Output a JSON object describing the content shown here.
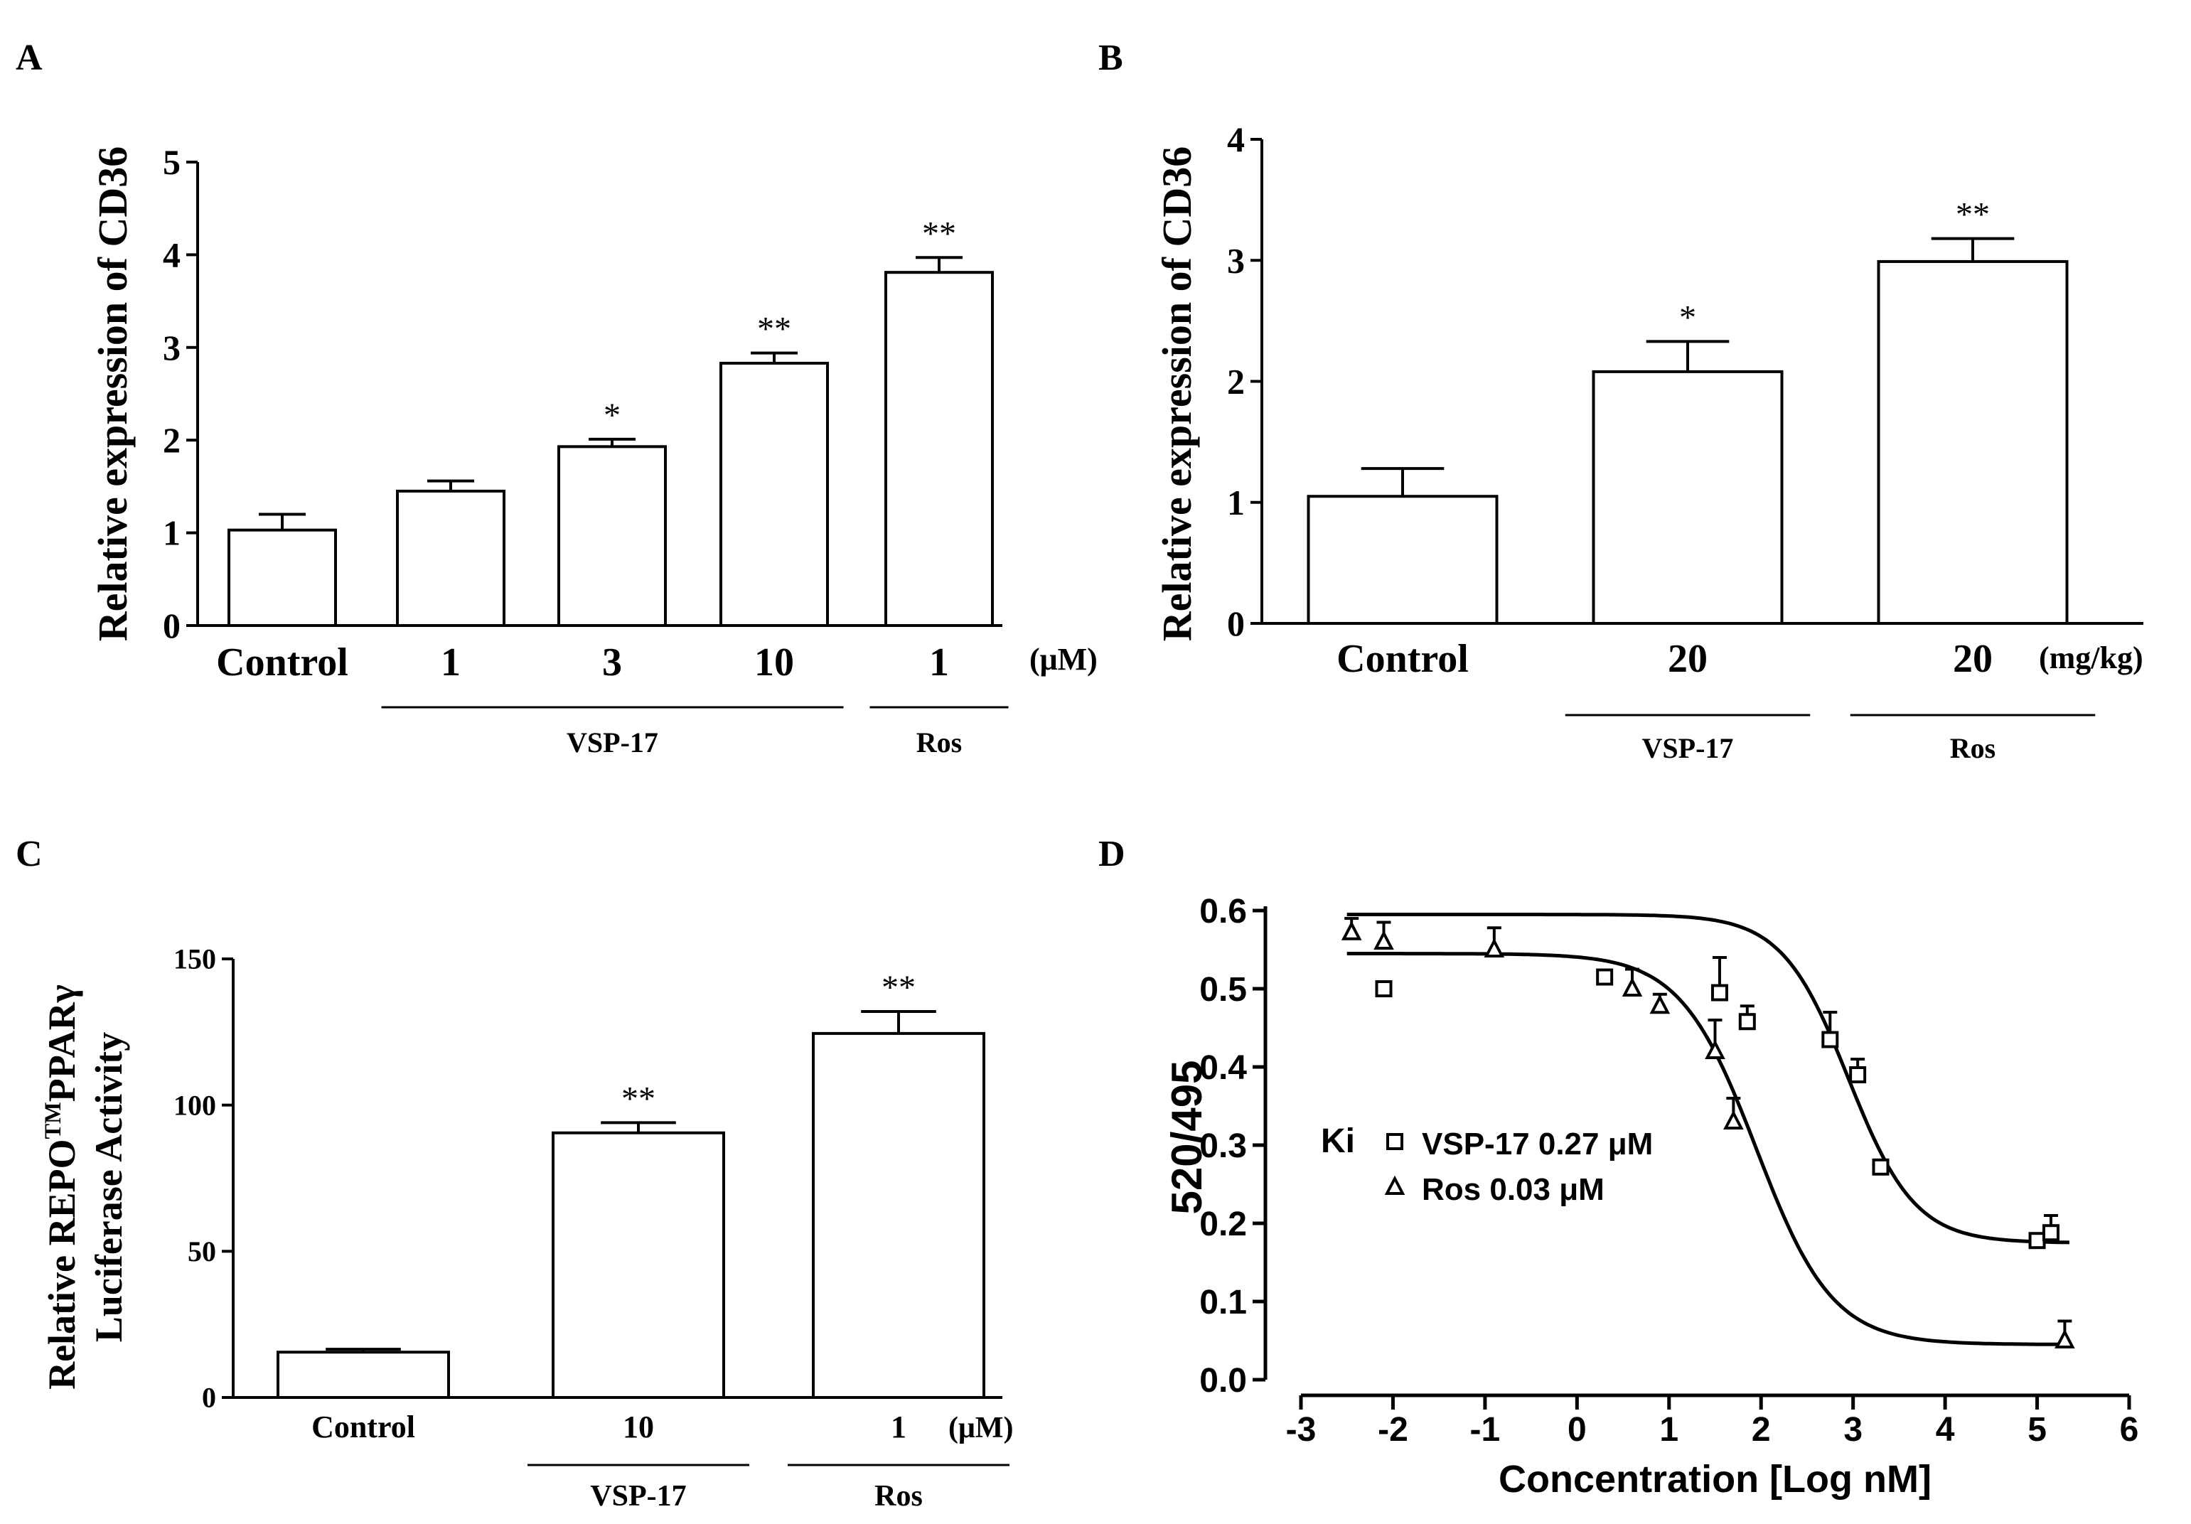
{
  "chart_data": [
    {
      "id": "A",
      "panel_label": "A",
      "type": "bar",
      "ylabel": "Relative expression of CD36",
      "ylim": [
        0,
        5
      ],
      "yticks": [
        "0",
        "1",
        "2",
        "3",
        "4",
        "5"
      ],
      "categories": [
        "Control",
        "1",
        "3",
        "10",
        "1"
      ],
      "values": [
        1.03,
        1.45,
        1.93,
        2.83,
        3.81
      ],
      "errors": [
        0.17,
        0.11,
        0.08,
        0.11,
        0.16
      ],
      "significance": [
        "",
        "",
        "*",
        "**",
        "**"
      ],
      "unit": "(μM)",
      "groups": [
        {
          "label": "VSP-17",
          "from": 1,
          "to": 3
        },
        {
          "label": "Ros",
          "from": 4,
          "to": 4
        }
      ]
    },
    {
      "id": "B",
      "panel_label": "B",
      "type": "bar",
      "ylabel": "Relative expression of CD36",
      "ylim": [
        0,
        4
      ],
      "yticks": [
        "0",
        "1",
        "2",
        "3",
        "4"
      ],
      "categories": [
        "Control",
        "20",
        "20"
      ],
      "values": [
        1.05,
        2.08,
        2.99
      ],
      "errors": [
        0.23,
        0.25,
        0.19
      ],
      "significance": [
        "",
        "*",
        "**"
      ],
      "unit": "(mg/kg)",
      "groups": [
        {
          "label": "VSP-17",
          "from": 1,
          "to": 1
        },
        {
          "label": "Ros",
          "from": 2,
          "to": 2
        }
      ]
    },
    {
      "id": "C",
      "panel_label": "C",
      "type": "bar",
      "ylabel_line1": "Relative REPO",
      "ylabel_sup": "TM",
      "ylabel_line1_end": "PPARγ",
      "ylabel_line2": "Luciferase Activity",
      "ylim": [
        0,
        150
      ],
      "yticks": [
        "0",
        "50",
        "100",
        "150"
      ],
      "categories": [
        "Control",
        "10",
        "1"
      ],
      "values": [
        15.5,
        90.5,
        124.5
      ],
      "errors": [
        1.0,
        3.5,
        7.5
      ],
      "significance": [
        "",
        "**",
        "**"
      ],
      "unit": "(μM)",
      "groups": [
        {
          "label": "VSP-17",
          "from": 1,
          "to": 1
        },
        {
          "label": "Ros",
          "from": 2,
          "to": 2
        }
      ]
    },
    {
      "id": "D",
      "panel_label": "D",
      "type": "scatter",
      "xlabel": "Concentration [Log nM]",
      "ylabel": "520/495",
      "xlim": [
        -3,
        6
      ],
      "ylim": [
        0,
        0.6
      ],
      "xticks": [
        "-3",
        "-2",
        "-1",
        "0",
        "1",
        "2",
        "3",
        "4",
        "5",
        "6"
      ],
      "yticks": [
        "0.0",
        "0.1",
        "0.2",
        "0.3",
        "0.4",
        "0.5",
        "0.6"
      ],
      "legend_prefix": "Ki",
      "series": [
        {
          "name": "VSP-17 0.27 μM",
          "marker": "square",
          "points": [
            {
              "x": -2.1,
              "y": 0.5,
              "err": 0.0
            },
            {
              "x": 0.3,
              "y": 0.515,
              "err": 0.0
            },
            {
              "x": 1.55,
              "y": 0.495,
              "err": 0.045
            },
            {
              "x": 1.85,
              "y": 0.458,
              "err": 0.02
            },
            {
              "x": 2.75,
              "y": 0.435,
              "err": 0.035
            },
            {
              "x": 3.05,
              "y": 0.39,
              "err": 0.02
            },
            {
              "x": 3.3,
              "y": 0.272,
              "err": 0.0
            },
            {
              "x": 5.0,
              "y": 0.178,
              "err": 0.0
            },
            {
              "x": 5.15,
              "y": 0.188,
              "err": 0.022
            }
          ],
          "fit": {
            "top": 0.595,
            "bottom": 0.175,
            "logEC50": 2.95,
            "hill": 1.2
          }
        },
        {
          "name": "Ros 0.03 μM",
          "marker": "triangle",
          "points": [
            {
              "x": -2.45,
              "y": 0.572,
              "err": 0.018
            },
            {
              "x": -2.1,
              "y": 0.56,
              "err": 0.025
            },
            {
              "x": -0.9,
              "y": 0.55,
              "err": 0.028
            },
            {
              "x": 0.6,
              "y": 0.5,
              "err": 0.025
            },
            {
              "x": 0.9,
              "y": 0.478,
              "err": 0.015
            },
            {
              "x": 1.5,
              "y": 0.42,
              "err": 0.04
            },
            {
              "x": 1.7,
              "y": 0.33,
              "err": 0.03
            },
            {
              "x": 5.3,
              "y": 0.05,
              "err": 0.025
            }
          ],
          "fit": {
            "top": 0.545,
            "bottom": 0.045,
            "logEC50": 1.95,
            "hill": 1.05
          }
        }
      ]
    }
  ]
}
